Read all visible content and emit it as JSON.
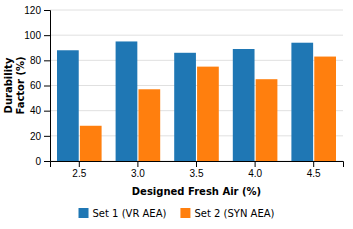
{
  "chart_data": {
    "type": "bar",
    "categories": [
      "2.5",
      "3.0",
      "3.5",
      "4.0",
      "4.5"
    ],
    "series": [
      {
        "name": "Set 1 (VR AEA)",
        "values": [
          88,
          95,
          86,
          89,
          94
        ]
      },
      {
        "name": "Set 2 (SYN AEA)",
        "values": [
          28,
          57,
          75,
          65,
          83
        ]
      }
    ],
    "xlabel": "Designed Fresh Air (%)",
    "ylabel": "Durability\nFactor (%)",
    "ylim": [
      0,
      120
    ],
    "yticks": [
      0,
      20,
      40,
      60,
      80,
      100,
      120
    ],
    "grid": true,
    "legend": "bottom"
  }
}
